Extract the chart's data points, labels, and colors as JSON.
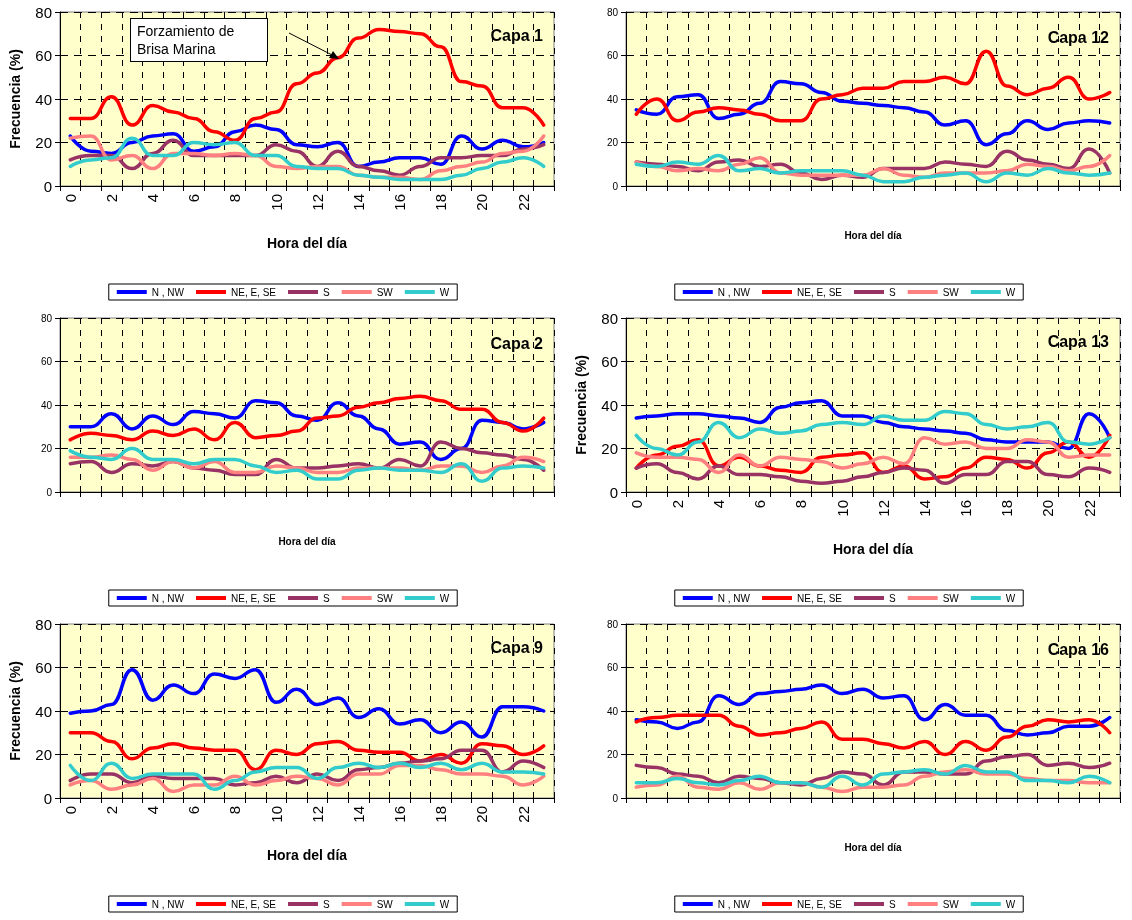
{
  "chart_data": [
    {
      "type": "line",
      "title": "Capa 1",
      "xlabel": "Hora del día",
      "ylabel": "Frecuencia (%)",
      "categories": [
        "0",
        null,
        "2",
        null,
        "4",
        null,
        "6",
        null,
        "8",
        null,
        "10",
        null,
        "12",
        null,
        "14",
        null,
        "16",
        null,
        "18",
        null,
        "20",
        null,
        "22",
        null
      ],
      "ylim": [
        0,
        80
      ],
      "yticks": [
        0,
        20,
        40,
        60,
        80
      ],
      "grid": true,
      "legend": "bottom",
      "marker": "none",
      "line_style": "solid",
      "annotations": [
        "Forzamiento de Brisa Marina"
      ],
      "series": [
        {
          "name": "N , NW",
          "color": "#0000ff",
          "values": [
            23,
            16,
            15,
            20,
            23,
            24,
            16,
            18,
            25,
            28,
            26,
            19,
            18,
            20,
            9,
            11,
            13,
            13,
            10,
            23,
            17,
            21,
            18,
            20
          ]
        },
        {
          "name": "NE, E, SE",
          "color": "#ff0000",
          "values": [
            31,
            31,
            41,
            28,
            37,
            34,
            31,
            25,
            21,
            31,
            34,
            47,
            52,
            59,
            68,
            72,
            71,
            70,
            64,
            48,
            46,
            36,
            36,
            28
          ]
        },
        {
          "name": "S",
          "color": "#993366",
          "values": [
            12,
            14,
            14,
            8,
            15,
            21,
            14,
            14,
            14,
            14,
            19,
            16,
            9,
            16,
            9,
            7,
            5,
            9,
            13,
            13,
            14,
            14,
            17,
            19
          ]
        },
        {
          "name": "SW",
          "color": "#ff8080",
          "values": [
            22,
            23,
            12,
            14,
            8,
            15,
            15,
            14,
            15,
            14,
            9,
            8,
            9,
            9,
            5,
            4,
            4,
            3,
            7,
            9,
            11,
            15,
            16,
            23
          ]
        },
        {
          "name": "W",
          "color": "#33cccc",
          "values": [
            9,
            12,
            13,
            22,
            14,
            14,
            20,
            19,
            20,
            14,
            14,
            9,
            8,
            8,
            5,
            4,
            3,
            3,
            3,
            5,
            8,
            11,
            13,
            9
          ]
        }
      ]
    },
    {
      "type": "line",
      "title": "Capa 12",
      "xlabel": "Hora del día",
      "categories": [
        "0",
        null,
        "2",
        null,
        "4",
        null,
        "6",
        null,
        "8",
        null,
        "10",
        null,
        "12",
        null,
        "14",
        null,
        "16",
        null,
        "18",
        null,
        "20",
        null,
        "22",
        null
      ],
      "ylim": [
        0,
        80
      ],
      "yticks": [
        0,
        20,
        40,
        60,
        80
      ],
      "grid": true,
      "legend": "bottom",
      "marker": "none",
      "line_style": "solid",
      "tick_labels": "y",
      "series": [
        {
          "name": "N , NW",
          "color": "#0000ff",
          "values": [
            35,
            33,
            41,
            42,
            31,
            33,
            38,
            48,
            47,
            43,
            39,
            38,
            37,
            36,
            34,
            28,
            30,
            19,
            24,
            30,
            26,
            29,
            30,
            29
          ]
        },
        {
          "name": "NE, E, SE",
          "color": "#ff0000",
          "values": [
            33,
            40,
            30,
            34,
            36,
            35,
            33,
            30,
            30,
            40,
            42,
            45,
            45,
            48,
            48,
            50,
            47,
            62,
            46,
            42,
            45,
            50,
            40,
            43
          ]
        },
        {
          "name": "S",
          "color": "#993366",
          "values": [
            11,
            10,
            9,
            7,
            11,
            12,
            9,
            10,
            6,
            3,
            5,
            4,
            8,
            8,
            8,
            11,
            10,
            9,
            16,
            12,
            10,
            8,
            17,
            6
          ]
        },
        {
          "name": "SW",
          "color": "#ff8080",
          "values": [
            11,
            9,
            7,
            8,
            7,
            10,
            13,
            6,
            5,
            5,
            5,
            5,
            8,
            5,
            4,
            6,
            6,
            6,
            7,
            10,
            9,
            7,
            9,
            14
          ]
        },
        {
          "name": "W",
          "color": "#33cccc",
          "values": [
            10,
            9,
            11,
            10,
            14,
            7,
            8,
            6,
            7,
            7,
            7,
            5,
            2,
            2,
            4,
            5,
            6,
            2,
            6,
            5,
            8,
            6,
            5,
            6
          ]
        }
      ]
    },
    {
      "type": "line",
      "title": "Capa 2",
      "xlabel": "Hora del día",
      "categories": [
        "0",
        null,
        "2",
        null,
        "4",
        null,
        "6",
        null,
        "8",
        null,
        "10",
        null,
        "12",
        null,
        "14",
        null,
        "16",
        null,
        "18",
        null,
        "20",
        null,
        "22",
        null
      ],
      "ylim": [
        0,
        80
      ],
      "yticks": [
        0,
        20,
        40,
        60,
        80
      ],
      "grid": true,
      "legend": "bottom",
      "marker": "none",
      "line_style": "solid",
      "tick_labels": "y",
      "series": [
        {
          "name": "N , NW",
          "color": "#0000ff",
          "values": [
            30,
            30,
            36,
            29,
            35,
            31,
            37,
            36,
            34,
            42,
            41,
            35,
            33,
            41,
            35,
            29,
            22,
            23,
            15,
            20,
            33,
            32,
            29,
            32
          ]
        },
        {
          "name": "NE, E, SE",
          "color": "#ff0000",
          "values": [
            24,
            27,
            26,
            24,
            28,
            26,
            29,
            24,
            32,
            25,
            26,
            28,
            34,
            35,
            39,
            41,
            43,
            44,
            42,
            38,
            38,
            32,
            28,
            34
          ]
        },
        {
          "name": "S",
          "color": "#993366",
          "values": [
            13,
            14,
            9,
            13,
            12,
            14,
            11,
            10,
            8,
            8,
            15,
            11,
            11,
            12,
            13,
            11,
            15,
            12,
            23,
            20,
            18,
            17,
            15,
            10
          ]
        },
        {
          "name": "SW",
          "color": "#ff8080",
          "values": [
            16,
            16,
            17,
            15,
            10,
            14,
            11,
            14,
            9,
            9,
            12,
            11,
            9,
            9,
            11,
            11,
            11,
            10,
            12,
            12,
            9,
            12,
            16,
            14
          ]
        },
        {
          "name": "W",
          "color": "#33cccc",
          "values": [
            19,
            16,
            15,
            20,
            15,
            15,
            13,
            15,
            15,
            12,
            9,
            10,
            6,
            6,
            10,
            11,
            10,
            10,
            9,
            13,
            5,
            11,
            12,
            11
          ]
        }
      ]
    },
    {
      "type": "line",
      "title": "Capa 13",
      "xlabel": "Hora del día",
      "ylabel": "Frecuencia (%)",
      "categories": [
        "0",
        null,
        "2",
        null,
        "4",
        null,
        "6",
        null,
        "8",
        null,
        "10",
        null,
        "12",
        null,
        "14",
        null,
        "16",
        null,
        "18",
        null,
        "20",
        null,
        "22",
        null
      ],
      "ylim": [
        0,
        80
      ],
      "yticks": [
        0,
        20,
        40,
        60,
        80
      ],
      "grid": true,
      "legend": "bottom",
      "marker": "none",
      "line_style": "solid",
      "series": [
        {
          "name": "N , NW",
          "color": "#0000ff",
          "values": [
            34,
            35,
            36,
            36,
            35,
            34,
            32,
            39,
            41,
            42,
            35,
            35,
            32,
            30,
            29,
            28,
            27,
            24,
            23,
            23,
            23,
            20,
            36,
            25
          ]
        },
        {
          "name": "NE, E, SE",
          "color": "#ff0000",
          "values": [
            11,
            17,
            21,
            24,
            12,
            16,
            12,
            10,
            9,
            16,
            17,
            18,
            9,
            12,
            6,
            7,
            11,
            16,
            15,
            11,
            18,
            23,
            16,
            26
          ]
        },
        {
          "name": "S",
          "color": "#993366",
          "values": [
            11,
            13,
            9,
            6,
            12,
            8,
            8,
            7,
            5,
            4,
            5,
            7,
            9,
            11,
            10,
            4,
            8,
            8,
            14,
            14,
            8,
            7,
            11,
            9
          ]
        },
        {
          "name": "SW",
          "color": "#ff8080",
          "values": [
            18,
            16,
            16,
            15,
            9,
            17,
            12,
            16,
            15,
            14,
            11,
            13,
            16,
            13,
            25,
            22,
            23,
            20,
            20,
            24,
            23,
            16,
            17,
            17
          ]
        },
        {
          "name": "W",
          "color": "#33cccc",
          "values": [
            26,
            20,
            17,
            23,
            32,
            25,
            29,
            27,
            28,
            31,
            32,
            31,
            35,
            33,
            33,
            37,
            36,
            31,
            29,
            30,
            32,
            23,
            22,
            25
          ]
        }
      ]
    },
    {
      "type": "line",
      "title": "Capa 9",
      "xlabel": "Hora del día",
      "ylabel": "Frecuencia (%)",
      "categories": [
        "0",
        null,
        "2",
        null,
        "4",
        null,
        "6",
        null,
        "8",
        null,
        "10",
        null,
        "12",
        null,
        "14",
        null,
        "16",
        null,
        "18",
        null,
        "20",
        null,
        "22",
        null
      ],
      "ylim": [
        0,
        80
      ],
      "yticks": [
        0,
        20,
        40,
        60,
        80
      ],
      "grid": true,
      "legend": "bottom",
      "marker": "none",
      "line_style": "solid",
      "series": [
        {
          "name": "N , NW",
          "color": "#0000ff",
          "values": [
            39,
            40,
            43,
            59,
            45,
            52,
            48,
            57,
            55,
            59,
            44,
            50,
            43,
            46,
            37,
            41,
            34,
            36,
            30,
            35,
            28,
            42,
            42,
            40
          ]
        },
        {
          "name": "NE, E, SE",
          "color": "#ff0000",
          "values": [
            30,
            30,
            26,
            18,
            23,
            25,
            23,
            22,
            22,
            13,
            22,
            20,
            25,
            26,
            22,
            21,
            21,
            17,
            20,
            16,
            25,
            24,
            20,
            24
          ]
        },
        {
          "name": "S",
          "color": "#993366",
          "values": [
            8,
            11,
            11,
            7,
            10,
            9,
            9,
            9,
            6,
            7,
            10,
            7,
            11,
            8,
            13,
            14,
            16,
            17,
            18,
            22,
            22,
            12,
            17,
            14
          ]
        },
        {
          "name": "SW",
          "color": "#ff8080",
          "values": [
            6,
            8,
            4,
            6,
            9,
            3,
            6,
            6,
            10,
            6,
            8,
            10,
            9,
            6,
            11,
            11,
            15,
            15,
            13,
            11,
            11,
            10,
            6,
            10
          ]
        },
        {
          "name": "W",
          "color": "#33cccc",
          "values": [
            15,
            8,
            16,
            9,
            11,
            11,
            11,
            4,
            8,
            12,
            14,
            14,
            9,
            14,
            16,
            14,
            16,
            14,
            16,
            13,
            16,
            12,
            12,
            11
          ]
        }
      ]
    },
    {
      "type": "line",
      "title": "Capa 16",
      "xlabel": "Hora del día",
      "categories": [
        "0",
        null,
        "2",
        null,
        "4",
        null,
        "6",
        null,
        "8",
        null,
        "10",
        null,
        "12",
        null,
        "14",
        null,
        "16",
        null,
        "18",
        null,
        "20",
        null,
        "22",
        null
      ],
      "ylim": [
        0,
        80
      ],
      "yticks": [
        0,
        20,
        40,
        60,
        80
      ],
      "grid": true,
      "legend": "bottom",
      "marker": "none",
      "line_style": "solid",
      "tick_labels": "y",
      "series": [
        {
          "name": "N , NW",
          "color": "#0000ff",
          "values": [
            36,
            35,
            32,
            35,
            47,
            43,
            48,
            49,
            50,
            52,
            48,
            50,
            46,
            47,
            36,
            43,
            38,
            38,
            31,
            29,
            30,
            33,
            33,
            37
          ]
        },
        {
          "name": "NE, E, SE",
          "color": "#ff0000",
          "values": [
            35,
            37,
            38,
            38,
            38,
            33,
            29,
            30,
            32,
            35,
            27,
            27,
            25,
            23,
            26,
            20,
            26,
            22,
            28,
            33,
            36,
            35,
            36,
            30
          ]
        },
        {
          "name": "S",
          "color": "#993366",
          "values": [
            15,
            14,
            11,
            10,
            7,
            10,
            9,
            7,
            6,
            9,
            12,
            11,
            6,
            12,
            12,
            11,
            11,
            17,
            19,
            20,
            15,
            16,
            14,
            16
          ]
        },
        {
          "name": "SW",
          "color": "#ff8080",
          "values": [
            5,
            6,
            10,
            5,
            4,
            7,
            4,
            7,
            7,
            5,
            3,
            5,
            5,
            6,
            10,
            12,
            13,
            11,
            11,
            9,
            8,
            8,
            7,
            7
          ]
        },
        {
          "name": "W",
          "color": "#33cccc",
          "values": [
            7,
            7,
            9,
            7,
            6,
            8,
            10,
            7,
            7,
            5,
            10,
            6,
            11,
            12,
            13,
            11,
            15,
            12,
            12,
            8,
            8,
            7,
            10,
            7
          ]
        }
      ]
    }
  ]
}
